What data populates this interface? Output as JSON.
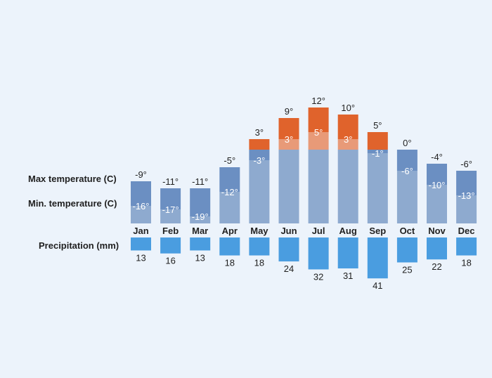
{
  "chart_data": {
    "type": "bar",
    "categories": [
      "Jan",
      "Feb",
      "Mar",
      "Apr",
      "May",
      "Jun",
      "Jul",
      "Aug",
      "Sep",
      "Oct",
      "Nov",
      "Dec"
    ],
    "series": [
      {
        "name": "Max temperature (C)",
        "values": [
          -9,
          -11,
          -11,
          -5,
          3,
          9,
          12,
          10,
          5,
          0,
          -4,
          -6
        ],
        "labels": [
          "-9°",
          "-11°",
          "-11°",
          "-5°",
          "3°",
          "9°",
          "12°",
          "10°",
          "5°",
          "0°",
          "-4°",
          "-6°"
        ]
      },
      {
        "name": "Min. temperature (C)",
        "values": [
          -16,
          -17,
          -19,
          -12,
          -3,
          3,
          5,
          3,
          -1,
          -6,
          -10,
          -13
        ],
        "labels": [
          "-16°",
          "-17°",
          "-19°",
          "-12°",
          "-3°",
          "3°",
          "5°",
          "3°",
          "-1°",
          "-6°",
          "-10°",
          "-13°"
        ]
      },
      {
        "name": "Precipitation (mm)",
        "values": [
          13,
          16,
          13,
          18,
          18,
          24,
          32,
          31,
          41,
          25,
          22,
          18
        ],
        "labels": [
          "13",
          "16",
          "13",
          "18",
          "18",
          "24",
          "32",
          "31",
          "41",
          "25",
          "22",
          "18"
        ]
      }
    ],
    "colors": {
      "cold_max": "#6b8fc2",
      "cold_min": "#8eaacf",
      "warm_max": "#e0632c",
      "warm_min": "#e89a78",
      "precip": "#4a9de0"
    },
    "temperature_base": -21,
    "grid": false,
    "legend": "left"
  },
  "labels": {
    "max": "Max temperature (C)",
    "min": "Min. temperature (C)",
    "precip": "Precipitation (mm)"
  }
}
